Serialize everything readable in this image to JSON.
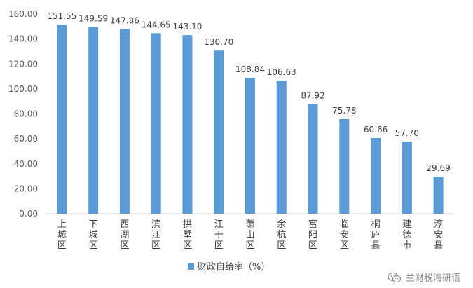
{
  "chart_data": {
    "type": "bar",
    "categories": [
      "上城区",
      "下城区",
      "西湖区",
      "滨江区",
      "拱墅区",
      "江干区",
      "萧山区",
      "余杭区",
      "富阳区",
      "临安区",
      "桐庐县",
      "建德市",
      "淳安县"
    ],
    "series": [
      {
        "name": "财政自给率（%）",
        "values": [
          151.55,
          149.59,
          147.86,
          144.65,
          143.1,
          130.7,
          108.84,
          106.63,
          87.92,
          75.78,
          60.66,
          57.7,
          29.69
        ],
        "labels": [
          "151.55",
          "149.59",
          "147.86",
          "144.65",
          "143.10",
          "130.70",
          "108.84",
          "106.63",
          "87.92",
          "75.78",
          "60.66",
          "57.70",
          "29.69"
        ],
        "color": "#5b9bd5"
      }
    ],
    "y_ticks": [
      "0.00",
      "20.00",
      "40.00",
      "60.00",
      "80.00",
      "100.00",
      "120.00",
      "140.00",
      "160.00"
    ],
    "ylim": [
      0,
      160
    ],
    "grid": false,
    "legend_position": "bottom",
    "title": "",
    "xlabel": "",
    "ylabel": ""
  },
  "watermark": {
    "icon": "wechat-icon",
    "text": "兰财税海研语"
  }
}
